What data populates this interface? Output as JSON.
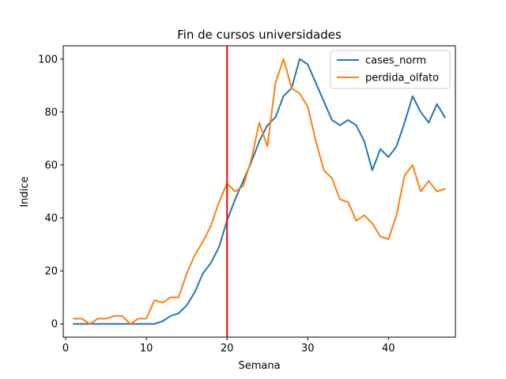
{
  "chart_data": {
    "type": "line",
    "title": "Fin de cursos universidades",
    "xlabel": "Semana",
    "ylabel": "Indice",
    "xlim": [
      -0.3,
      48.3
    ],
    "ylim": [
      -5,
      105
    ],
    "xticks": [
      0,
      10,
      20,
      30,
      40
    ],
    "yticks": [
      0,
      20,
      40,
      60,
      80,
      100
    ],
    "grid": false,
    "legend_position": "top-right",
    "x": [
      1,
      2,
      3,
      4,
      5,
      6,
      7,
      8,
      9,
      10,
      11,
      12,
      13,
      14,
      15,
      16,
      17,
      18,
      19,
      20,
      21,
      22,
      23,
      24,
      25,
      26,
      27,
      28,
      29,
      30,
      31,
      32,
      33,
      34,
      35,
      36,
      37,
      38,
      39,
      40,
      41,
      42,
      43,
      44,
      45,
      46,
      47
    ],
    "series": [
      {
        "name": "cases_norm",
        "color": "#1f77b4",
        "values": [
          0,
          0,
          0,
          0,
          0,
          0,
          0,
          0,
          0,
          0,
          0,
          1,
          3,
          4,
          7,
          12,
          19,
          23,
          29,
          39,
          47,
          54,
          61,
          69,
          75,
          78,
          86,
          89,
          100,
          98,
          91,
          84,
          77,
          75,
          77,
          75,
          69,
          58,
          66,
          63,
          67,
          76,
          86,
          80,
          76,
          83,
          78
        ]
      },
      {
        "name": "perdida_olfato",
        "color": "#ff7f0e",
        "values": [
          2,
          2,
          0,
          2,
          2,
          3,
          3,
          0,
          2,
          2,
          9,
          8,
          10,
          10,
          19,
          26,
          31,
          37,
          46,
          53,
          50,
          52,
          62,
          76,
          67,
          91,
          100,
          89,
          87,
          82,
          69,
          58,
          55,
          47,
          46,
          39,
          41,
          38,
          33,
          32,
          41,
          56,
          60,
          50,
          54,
          50,
          51
        ]
      }
    ],
    "vline": {
      "x": 20,
      "color": "#ff0000"
    }
  }
}
